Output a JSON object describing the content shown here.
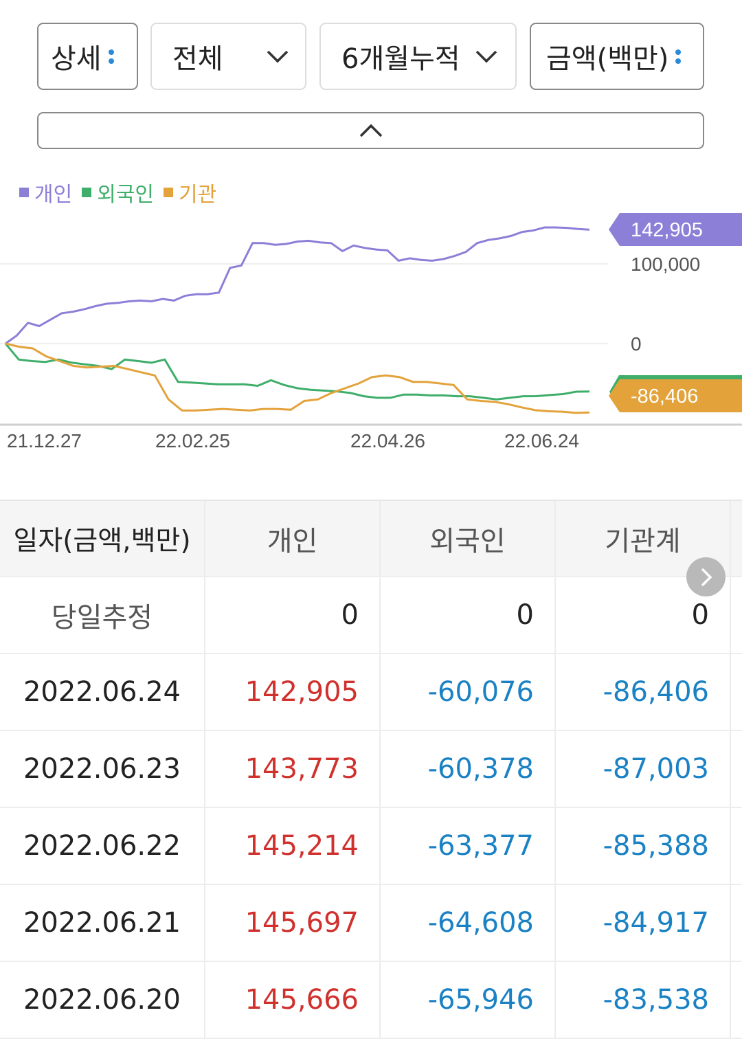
{
  "filters": {
    "detail": "상세",
    "scope": "전체",
    "period": "6개월누적",
    "unit": "금액(백만)"
  },
  "colors": {
    "individual": "#8b7fd8",
    "foreign": "#3fae6a",
    "institution": "#e3a23a",
    "positive": "#d0312d",
    "negative": "#1a82c4"
  },
  "legend": [
    "개인",
    "외국인",
    "기관"
  ],
  "chart_data": {
    "type": "line",
    "x_ticks": [
      "21.12.27",
      "22.02.25",
      "22.04.26",
      "22.06.24"
    ],
    "y_ticks": [
      "100,000",
      "0"
    ],
    "ylim": [
      -105000,
      165000
    ],
    "series": [
      {
        "name": "개인",
        "values": [
          0,
          10000,
          26000,
          22000,
          30000,
          38000,
          40000,
          43000,
          47000,
          50000,
          51000,
          53000,
          54000,
          53000,
          56000,
          54000,
          60000,
          62000,
          62000,
          64000,
          95000,
          98000,
          126000,
          126000,
          124000,
          125000,
          128000,
          129000,
          127000,
          126000,
          116000,
          123000,
          120000,
          118000,
          117000,
          104000,
          107000,
          105000,
          104000,
          106000,
          110000,
          115000,
          126000,
          130000,
          132000,
          135000,
          140000,
          142000,
          145666,
          145697,
          145214,
          143773,
          142905
        ],
        "last_label": "142,905"
      },
      {
        "name": "외국인",
        "values": [
          0,
          -20000,
          -22000,
          -23000,
          -20000,
          -24000,
          -26000,
          -28000,
          -32000,
          -20000,
          -22000,
          -24000,
          -20000,
          -48000,
          -49000,
          -50000,
          -51000,
          -51000,
          -51000,
          -53000,
          -46000,
          -52000,
          -56000,
          -58000,
          -59000,
          -60000,
          -62000,
          -66000,
          -68000,
          -68000,
          -64000,
          -64000,
          -65000,
          -65000,
          -66000,
          -66000,
          -68000,
          -70000,
          -68000,
          -66000,
          -65946,
          -64608,
          -63377,
          -60378,
          -60076
        ],
        "last_label": "-60,076"
      },
      {
        "name": "기관",
        "values": [
          0,
          -4000,
          -6000,
          -16000,
          -22000,
          -28000,
          -30000,
          -29000,
          -28000,
          -32000,
          -36000,
          -40000,
          -70000,
          -84000,
          -84000,
          -83000,
          -82000,
          -83000,
          -84000,
          -82000,
          -82000,
          -83000,
          -72000,
          -70000,
          -62000,
          -56000,
          -50000,
          -42000,
          -40000,
          -42000,
          -48000,
          -48000,
          -50000,
          -52000,
          -70000,
          -72000,
          -73000,
          -76000,
          -80000,
          -83538,
          -84917,
          -85388,
          -87003,
          -86406
        ],
        "last_label": "-86,406"
      }
    ]
  },
  "table": {
    "headers": [
      "일자(금액,백만)",
      "개인",
      "외국인",
      "기관계"
    ],
    "estimate": {
      "label": "당일추정",
      "values": [
        "0",
        "0",
        "0"
      ]
    },
    "rows": [
      {
        "date": "2022.06.24",
        "values": [
          "142,905",
          "-60,076",
          "-86,406"
        ]
      },
      {
        "date": "2022.06.23",
        "values": [
          "143,773",
          "-60,378",
          "-87,003"
        ]
      },
      {
        "date": "2022.06.22",
        "values": [
          "145,214",
          "-63,377",
          "-85,388"
        ]
      },
      {
        "date": "2022.06.21",
        "values": [
          "145,697",
          "-64,608",
          "-84,917"
        ]
      },
      {
        "date": "2022.06.20",
        "values": [
          "145,666",
          "-65,946",
          "-83,538"
        ]
      }
    ]
  }
}
